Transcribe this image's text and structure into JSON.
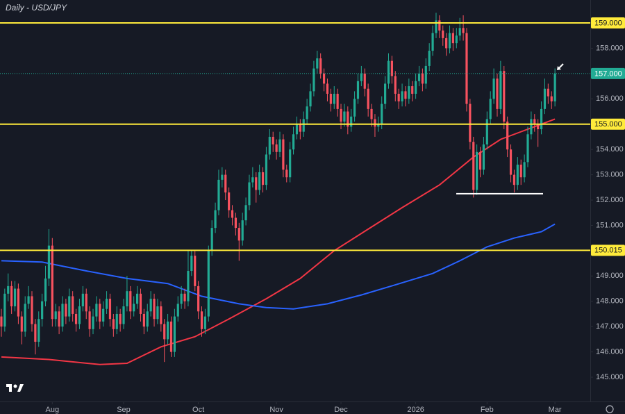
{
  "chart_data": {
    "type": "candlestick",
    "title": "Daily - USD/JPY",
    "up_color": "#22ab94",
    "down_color": "#f7525f",
    "grid": false,
    "xlim": [
      -0.4,
      173.4
    ],
    "ylim": [
      144.04,
      159.906
    ],
    "yticks": [
      {
        "value": 145,
        "label": "145.000"
      },
      {
        "value": 146,
        "label": "146.000"
      },
      {
        "value": 147,
        "label": "147.000"
      },
      {
        "value": 148,
        "label": "148.000"
      },
      {
        "value": 149,
        "label": "149.000"
      },
      {
        "value": 151,
        "label": "151.000"
      },
      {
        "value": 152,
        "label": "152.000"
      },
      {
        "value": 153,
        "label": "153.000"
      },
      {
        "value": 154,
        "label": "154.000"
      },
      {
        "value": 156,
        "label": "156.000"
      },
      {
        "value": 158,
        "label": "158.000"
      }
    ],
    "xticks": [
      {
        "value": 15,
        "label": "Aug"
      },
      {
        "value": 36,
        "label": "Sep"
      },
      {
        "value": 58,
        "label": "Oct"
      },
      {
        "value": 81,
        "label": "Nov"
      },
      {
        "value": 100,
        "label": "Dec"
      },
      {
        "value": 122,
        "label": "2026"
      },
      {
        "value": 143,
        "label": "Feb"
      },
      {
        "value": 163,
        "label": "Mar"
      }
    ],
    "levels": [
      {
        "value": 159,
        "label": "159.000"
      },
      {
        "value": 155,
        "label": "155.000"
      },
      {
        "value": 150.015,
        "label": "150.015"
      }
    ],
    "level_color": "#ffeb3b",
    "last_price": {
      "value": 157,
      "label": "157.000"
    },
    "support_level": 152.25,
    "moving_averages": [
      {
        "color": "#f23645",
        "x": [
          0,
          14,
          29,
          37,
          47,
          57,
          67,
          78,
          88,
          98,
          108,
          118,
          129,
          139,
          147,
          155,
          163
        ],
        "values": [
          145.8,
          145.7,
          145.5,
          145.55,
          146.2,
          146.6,
          147.3,
          148.1,
          148.9,
          150.0,
          150.85,
          151.7,
          152.6,
          153.7,
          154.4,
          154.8,
          155.2
        ]
      },
      {
        "color": "#2962ff",
        "x": [
          0,
          12,
          25,
          37,
          49,
          59,
          70,
          78,
          86,
          96,
          106,
          116,
          127,
          135,
          143,
          151,
          159,
          163
        ],
        "values": [
          149.6,
          149.55,
          149.2,
          148.9,
          148.7,
          148.2,
          147.9,
          147.75,
          147.7,
          147.9,
          148.25,
          148.65,
          149.1,
          149.6,
          150.15,
          150.5,
          150.75,
          151.05
        ]
      }
    ],
    "candles": [
      [
        147.4,
        147.7,
        146.6,
        147.0
      ],
      [
        147.0,
        148.5,
        146.8,
        148.3
      ],
      [
        148.3,
        149.1,
        148.0,
        148.6
      ],
      [
        148.6,
        148.8,
        147.5,
        147.8
      ],
      [
        147.8,
        148.8,
        147.6,
        148.5
      ],
      [
        148.5,
        148.7,
        147.1,
        147.4
      ],
      [
        147.4,
        147.6,
        146.3,
        146.8
      ],
      [
        146.8,
        148.2,
        146.6,
        147.9
      ],
      [
        147.9,
        148.6,
        147.7,
        148.2
      ],
      [
        148.2,
        148.4,
        146.8,
        147.1
      ],
      [
        147.1,
        147.3,
        145.9,
        146.4
      ],
      [
        146.4,
        147.6,
        146.2,
        147.3
      ],
      [
        147.3,
        148.3,
        147.0,
        148.0
      ],
      [
        148.0,
        149.4,
        147.8,
        148.9
      ],
      [
        148.9,
        150.85,
        148.6,
        150.2
      ],
      [
        150.2,
        150.5,
        147.0,
        147.3
      ],
      [
        147.3,
        147.9,
        147.0,
        147.6
      ],
      [
        147.6,
        147.8,
        146.7,
        147.0
      ],
      [
        147.0,
        148.2,
        146.8,
        147.9
      ],
      [
        147.9,
        148.1,
        147.1,
        147.4
      ],
      [
        147.4,
        148.5,
        147.2,
        148.2
      ],
      [
        148.2,
        148.4,
        147.2,
        147.5
      ],
      [
        147.5,
        147.7,
        146.8,
        147.1
      ],
      [
        147.1,
        148.1,
        146.9,
        147.8
      ],
      [
        147.8,
        148.6,
        147.6,
        148.3
      ],
      [
        148.3,
        148.5,
        147.3,
        147.6
      ],
      [
        147.6,
        147.8,
        146.6,
        146.9
      ],
      [
        146.9,
        147.7,
        146.7,
        147.4
      ],
      [
        147.4,
        148.2,
        147.2,
        147.9
      ],
      [
        147.9,
        148.1,
        146.9,
        147.2
      ],
      [
        147.2,
        148.0,
        147.0,
        147.7
      ],
      [
        147.7,
        148.4,
        147.5,
        148.1
      ],
      [
        148.1,
        148.3,
        147.0,
        147.3
      ],
      [
        147.3,
        147.5,
        146.6,
        146.9
      ],
      [
        146.9,
        147.8,
        146.7,
        147.5
      ],
      [
        147.5,
        147.7,
        146.8,
        147.1
      ],
      [
        147.1,
        148.1,
        146.9,
        147.8
      ],
      [
        147.8,
        149.0,
        147.6,
        148.4
      ],
      [
        148.4,
        148.6,
        147.3,
        147.6
      ],
      [
        147.6,
        148.2,
        147.4,
        147.9
      ],
      [
        147.9,
        148.6,
        147.7,
        148.3
      ],
      [
        148.3,
        148.5,
        147.2,
        147.5
      ],
      [
        147.5,
        147.7,
        146.7,
        147.0
      ],
      [
        147.0,
        147.9,
        146.8,
        147.6
      ],
      [
        147.6,
        148.4,
        147.4,
        148.1
      ],
      [
        148.1,
        148.3,
        147.0,
        147.3
      ],
      [
        147.3,
        148.1,
        147.1,
        147.8
      ],
      [
        147.8,
        148.0,
        146.8,
        147.1
      ],
      [
        147.1,
        147.3,
        145.6,
        146.5
      ],
      [
        146.5,
        147.5,
        146.3,
        147.2
      ],
      [
        147.2,
        147.4,
        145.8,
        146.0
      ],
      [
        146.0,
        147.7,
        145.8,
        147.4
      ],
      [
        147.4,
        148.2,
        147.2,
        147.9
      ],
      [
        147.9,
        148.6,
        147.7,
        148.3
      ],
      [
        148.3,
        148.5,
        147.7,
        148.0
      ],
      [
        148.0,
        150.0,
        147.8,
        149.2
      ],
      [
        149.2,
        150.0,
        149.0,
        149.8
      ],
      [
        149.8,
        150.0,
        148.4,
        148.6
      ],
      [
        148.6,
        148.8,
        147.3,
        147.6
      ],
      [
        147.6,
        147.8,
        146.6,
        146.9
      ],
      [
        146.9,
        147.7,
        146.7,
        147.4
      ],
      [
        147.4,
        150.2,
        147.2,
        150.0
      ],
      [
        150.0,
        151.2,
        149.8,
        150.9
      ],
      [
        150.9,
        151.9,
        150.7,
        151.6
      ],
      [
        151.6,
        153.2,
        151.4,
        152.8
      ],
      [
        152.8,
        153.3,
        152.5,
        153.0
      ],
      [
        153.0,
        153.2,
        152.0,
        152.3
      ],
      [
        152.3,
        152.5,
        151.3,
        151.6
      ],
      [
        151.6,
        151.8,
        151.0,
        151.3
      ],
      [
        151.3,
        151.5,
        150.6,
        150.9
      ],
      [
        150.9,
        151.1,
        149.6,
        150.4
      ],
      [
        150.4,
        151.5,
        150.2,
        151.2
      ],
      [
        151.2,
        152.1,
        151.0,
        151.8
      ],
      [
        151.8,
        153.0,
        151.6,
        152.7
      ],
      [
        152.7,
        153.3,
        152.5,
        152.9
      ],
      [
        152.9,
        153.1,
        151.9,
        152.4
      ],
      [
        152.4,
        153.4,
        152.2,
        153.1
      ],
      [
        153.1,
        153.3,
        152.3,
        152.6
      ],
      [
        152.6,
        154.1,
        152.4,
        153.8
      ],
      [
        153.8,
        154.8,
        153.6,
        154.5
      ],
      [
        154.5,
        154.7,
        153.9,
        154.2
      ],
      [
        154.2,
        154.4,
        153.6,
        153.9
      ],
      [
        153.9,
        154.7,
        153.7,
        154.4
      ],
      [
        154.4,
        154.6,
        152.9,
        153.2
      ],
      [
        153.2,
        153.4,
        152.7,
        152.9
      ],
      [
        152.9,
        154.3,
        152.7,
        154.0
      ],
      [
        154.0,
        154.9,
        153.8,
        154.6
      ],
      [
        154.6,
        155.3,
        154.4,
        155.0
      ],
      [
        155.0,
        155.2,
        154.4,
        154.7
      ],
      [
        154.7,
        155.5,
        154.5,
        155.2
      ],
      [
        155.2,
        156.0,
        155.0,
        155.7
      ],
      [
        155.7,
        156.6,
        155.5,
        156.3
      ],
      [
        156.3,
        157.5,
        156.1,
        157.2
      ],
      [
        157.2,
        157.9,
        157.0,
        157.6
      ],
      [
        157.6,
        157.8,
        156.8,
        157.0
      ],
      [
        157.0,
        157.2,
        156.3,
        156.6
      ],
      [
        156.6,
        156.8,
        155.9,
        156.2
      ],
      [
        156.2,
        156.4,
        155.5,
        155.8
      ],
      [
        155.8,
        156.5,
        155.6,
        156.2
      ],
      [
        156.2,
        156.4,
        155.3,
        155.6
      ],
      [
        155.6,
        155.8,
        154.8,
        155.1
      ],
      [
        155.1,
        155.8,
        154.9,
        155.5
      ],
      [
        155.5,
        155.7,
        154.6,
        154.9
      ],
      [
        154.9,
        155.6,
        154.7,
        155.3
      ],
      [
        155.3,
        156.3,
        155.1,
        156.0
      ],
      [
        156.0,
        157.0,
        155.8,
        156.7
      ],
      [
        156.7,
        157.3,
        156.5,
        157.0
      ],
      [
        157.0,
        157.2,
        156.1,
        156.4
      ],
      [
        156.4,
        156.6,
        155.3,
        155.6
      ],
      [
        155.6,
        155.8,
        154.9,
        155.2
      ],
      [
        155.2,
        155.4,
        154.5,
        154.9
      ],
      [
        154.9,
        155.3,
        154.7,
        155.0
      ],
      [
        155.0,
        156.1,
        154.8,
        155.8
      ],
      [
        155.8,
        156.9,
        155.6,
        156.6
      ],
      [
        156.6,
        157.8,
        156.4,
        157.5
      ],
      [
        157.5,
        157.7,
        156.6,
        156.9
      ],
      [
        156.9,
        157.1,
        155.9,
        156.2
      ],
      [
        156.2,
        156.4,
        155.6,
        155.9
      ],
      [
        155.9,
        156.6,
        155.7,
        156.3
      ],
      [
        156.3,
        156.5,
        155.7,
        156.0
      ],
      [
        156.0,
        156.8,
        155.8,
        156.5
      ],
      [
        156.5,
        156.7,
        155.9,
        156.2
      ],
      [
        156.2,
        157.0,
        156.0,
        156.7
      ],
      [
        156.7,
        157.3,
        156.5,
        157.0
      ],
      [
        157.0,
        157.2,
        156.3,
        156.6
      ],
      [
        156.6,
        157.6,
        156.4,
        157.3
      ],
      [
        157.3,
        158.2,
        157.1,
        157.9
      ],
      [
        157.9,
        158.9,
        157.7,
        158.6
      ],
      [
        158.6,
        159.4,
        158.4,
        159.1
      ],
      [
        159.1,
        159.3,
        158.4,
        158.7
      ],
      [
        158.7,
        158.9,
        158.1,
        158.4
      ],
      [
        158.4,
        158.6,
        157.7,
        158.0
      ],
      [
        158.0,
        158.9,
        157.8,
        158.6
      ],
      [
        158.6,
        158.8,
        157.9,
        158.2
      ],
      [
        158.2,
        158.8,
        158.0,
        158.5
      ],
      [
        158.5,
        159.2,
        158.3,
        158.8
      ],
      [
        158.8,
        159.3,
        158.3,
        158.6
      ],
      [
        158.6,
        158.8,
        155.5,
        155.8
      ],
      [
        155.8,
        156.0,
        154.0,
        154.3
      ],
      [
        154.3,
        154.5,
        152.1,
        152.4
      ],
      [
        152.4,
        154.2,
        152.2,
        153.9
      ],
      [
        153.9,
        154.1,
        152.9,
        153.2
      ],
      [
        153.2,
        154.5,
        153.0,
        154.2
      ],
      [
        154.2,
        155.5,
        154.0,
        155.2
      ],
      [
        155.2,
        156.3,
        155.0,
        156.0
      ],
      [
        156.0,
        157.2,
        155.8,
        156.8
      ],
      [
        156.8,
        157.0,
        155.3,
        155.6
      ],
      [
        155.6,
        157.5,
        155.4,
        157.1
      ],
      [
        157.1,
        157.3,
        154.8,
        155.1
      ],
      [
        155.1,
        155.3,
        153.7,
        154.0
      ],
      [
        154.0,
        154.2,
        152.7,
        153.0
      ],
      [
        153.0,
        153.2,
        152.3,
        152.6
      ],
      [
        152.6,
        153.7,
        152.4,
        153.4
      ],
      [
        153.4,
        153.6,
        152.6,
        152.9
      ],
      [
        152.9,
        153.8,
        152.7,
        153.5
      ],
      [
        153.5,
        154.9,
        153.3,
        154.6
      ],
      [
        154.6,
        155.5,
        154.4,
        155.2
      ],
      [
        155.2,
        155.4,
        154.7,
        155.0
      ],
      [
        155.0,
        155.2,
        154.1,
        154.8
      ],
      [
        154.8,
        155.9,
        154.6,
        155.6
      ],
      [
        155.6,
        156.8,
        155.4,
        156.4
      ],
      [
        156.4,
        156.6,
        155.8,
        156.1
      ],
      [
        156.1,
        156.3,
        155.6,
        155.9
      ],
      [
        155.9,
        157.2,
        155.7,
        157.0
      ]
    ]
  }
}
